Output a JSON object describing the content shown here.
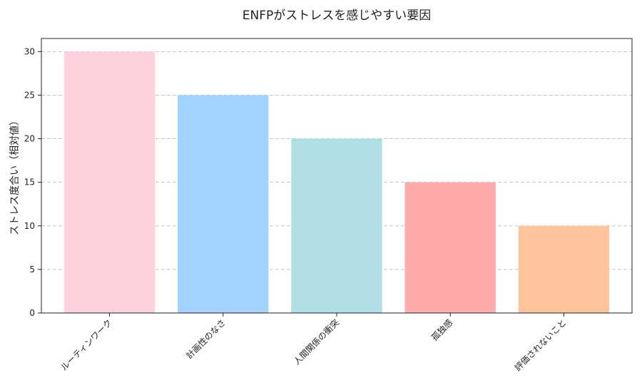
{
  "chart_data": {
    "type": "bar",
    "title": "ENFPがストレスを感じやすい要因",
    "xlabel": "",
    "ylabel": "ストレス度合い（相対値）",
    "categories": [
      "ルーティンワーク",
      "計画性のなさ",
      "人間関係の衝突",
      "孤独感",
      "評価されないこと"
    ],
    "values": [
      30,
      25,
      20,
      15,
      10
    ],
    "colors": [
      "#ffd1dc",
      "#a2d2ff",
      "#b0e0e6",
      "#ffabab",
      "#ffc49b"
    ],
    "ylim": [
      0,
      31.5
    ],
    "yticks": [
      0,
      5,
      10,
      15,
      20,
      25,
      30
    ],
    "grid": "y-dashed",
    "legend": "none"
  }
}
